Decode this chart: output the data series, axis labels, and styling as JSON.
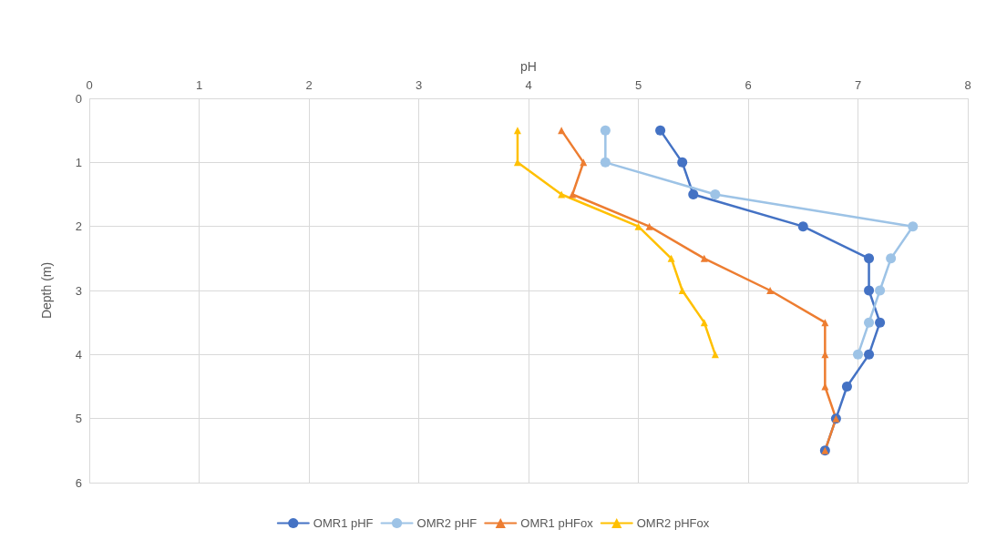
{
  "chart_data": {
    "type": "line",
    "xlabel": "pH",
    "ylabel": "Depth (m)",
    "xlim": [
      0,
      8
    ],
    "xticks": [
      0,
      1,
      2,
      3,
      4,
      5,
      6,
      7,
      8
    ],
    "ylim": [
      6,
      0
    ],
    "yticks": [
      0,
      1,
      2,
      3,
      4,
      5,
      6
    ],
    "grid": true,
    "legend": "bottom",
    "line_style": "solid",
    "series": [
      {
        "name": "OMR1 pHF",
        "color": "#4472c4",
        "marker": "circle",
        "x": [
          5.2,
          5.4,
          5.5,
          6.5,
          7.1,
          7.1,
          7.2,
          7.1,
          6.9,
          6.8,
          6.7
        ],
        "values": [
          0.5,
          1,
          1.5,
          2,
          2.5,
          3,
          3.5,
          4,
          4.5,
          5,
          5.5
        ]
      },
      {
        "name": "OMR2 pHF",
        "color": "#9dc3e6",
        "marker": "circle",
        "x": [
          4.7,
          4.7,
          5.7,
          7.5,
          7.3,
          7.2,
          7.1,
          7.0
        ],
        "values": [
          0.5,
          1,
          1.5,
          2,
          2.5,
          3,
          3.5,
          4
        ]
      },
      {
        "name": "OMR1 pHFox",
        "color": "#ed7d31",
        "marker": "triangle",
        "x": [
          4.3,
          4.5,
          4.4,
          5.1,
          5.6,
          6.2,
          6.7,
          6.7,
          6.7,
          6.8,
          6.7
        ],
        "values": [
          0.5,
          1,
          1.5,
          2,
          2.5,
          3,
          3.5,
          4,
          4.5,
          5,
          5.5
        ]
      },
      {
        "name": "OMR2 pHFox",
        "color": "#ffc000",
        "marker": "triangle",
        "x": [
          3.9,
          3.9,
          4.3,
          5.0,
          5.3,
          5.4,
          5.6,
          5.7
        ],
        "values": [
          0.5,
          1,
          1.5,
          2,
          2.5,
          3,
          3.5,
          4
        ]
      }
    ]
  }
}
